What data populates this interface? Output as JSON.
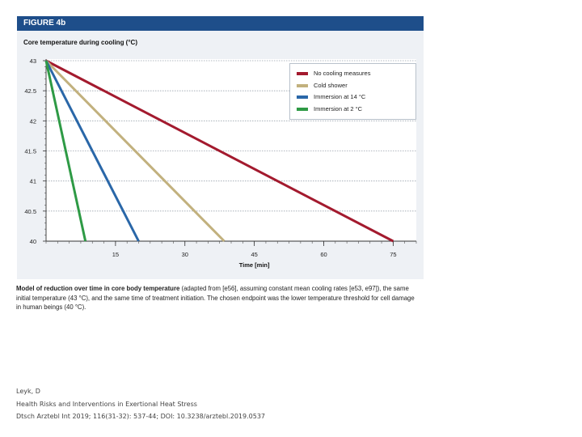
{
  "figure": {
    "label": "FIGURE 4b",
    "header_color": "#1e4e8a",
    "background_color": "#eef1f5"
  },
  "chart_data": {
    "type": "line",
    "title": "Core temperature during cooling (°C)",
    "xlabel": "Time [min]",
    "ylabel": "",
    "xlim": [
      0,
      80
    ],
    "ylim": [
      40,
      43
    ],
    "x_ticks": [
      15,
      30,
      45,
      60,
      75
    ],
    "x_tick_labels": [
      "15",
      "30",
      "45",
      "60",
      "75"
    ],
    "y_ticks": [
      40,
      40.5,
      41,
      41.5,
      42,
      42.5,
      43
    ],
    "y_tick_labels": [
      "40",
      "40.5",
      "41",
      "41.5",
      "42",
      "42.5",
      "43"
    ],
    "grid": "horizontal dotted",
    "legend_position": "top-right",
    "series": [
      {
        "name": "No cooling measures",
        "color": "#a31a2e",
        "x": [
          0,
          75
        ],
        "y": [
          43,
          40
        ]
      },
      {
        "name": "Cold shower",
        "color": "#c2b17e",
        "x": [
          0,
          38.5
        ],
        "y": [
          43,
          40
        ]
      },
      {
        "name": "Immersion at 14 °C",
        "color": "#2a67a8",
        "x": [
          0,
          20
        ],
        "y": [
          43,
          40
        ]
      },
      {
        "name": "Immersion at 2 °C",
        "color": "#2e9a45",
        "x": [
          0,
          8.5
        ],
        "y": [
          43,
          40
        ]
      }
    ]
  },
  "caption": {
    "bold": "Model of reduction over time in core body temperature",
    "text": " (adapted from [e56], assuming constant mean cooling rates [e53, e97]), the same initial temperature (43 °C), and the same time of treatment initiation. The chosen endpoint was the lower temperature threshold for cell damage in human beings (40 °C)."
  },
  "citation": {
    "author": "Leyk, D",
    "title": "Health Risks and Interventions in Exertional Heat Stress",
    "source": "Dtsch Arztebl Int 2019; 116(31-32): 537-44; DOI: 10.3238/arztebl.2019.0537"
  }
}
